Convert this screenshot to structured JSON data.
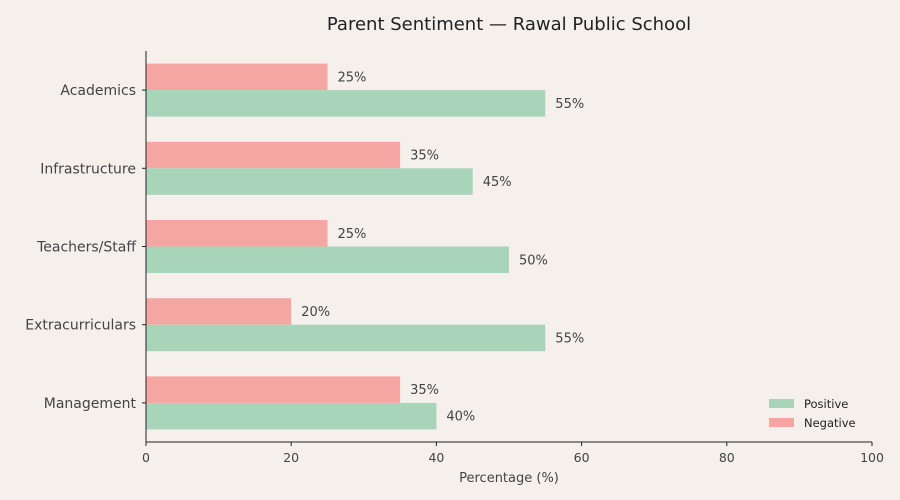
{
  "chart_data": {
    "type": "bar",
    "orientation": "horizontal",
    "title": "Parent Sentiment — Rawal Public School",
    "xlabel": "Percentage (%)",
    "ylabel": "",
    "xlim": [
      0,
      100
    ],
    "xticks": [
      0,
      20,
      40,
      60,
      80,
      100
    ],
    "categories": [
      "Academics",
      "Infrastructure",
      "Teachers/Staff",
      "Extracurriculars",
      "Management"
    ],
    "series": [
      {
        "name": "Positive",
        "color": "#a8d5ba",
        "values": [
          55,
          45,
          50,
          55,
          40
        ]
      },
      {
        "name": "Negative",
        "color": "#f6a6a2",
        "values": [
          25,
          35,
          25,
          20,
          35
        ]
      }
    ],
    "value_suffix": "%",
    "legend_position": "bottom-right",
    "grid": false
  }
}
